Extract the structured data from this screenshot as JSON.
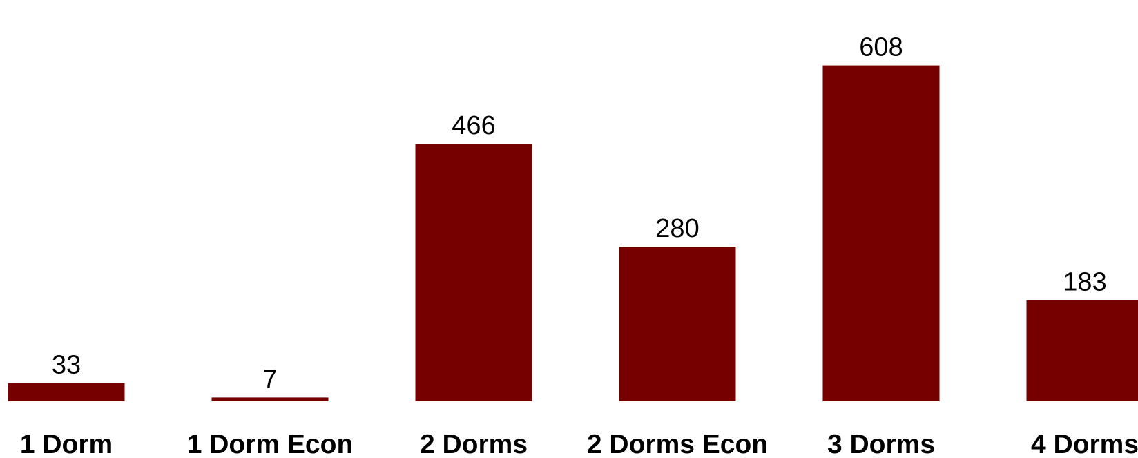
{
  "chart_data": {
    "type": "bar",
    "categories": [
      "1 Dorm",
      "1 Dorm Econ",
      "2 Dorms",
      "2 Dorms Econ",
      "3 Dorms",
      "4 Dorms"
    ],
    "values": [
      33,
      7,
      466,
      280,
      608,
      183
    ],
    "title": "",
    "xlabel": "",
    "ylabel": "",
    "ylim": [
      0,
      650
    ],
    "grid": false,
    "legend": "none",
    "data_labels": true,
    "colors": {
      "bar": "#760000",
      "text": "#000000",
      "background": "#ffffff"
    }
  }
}
